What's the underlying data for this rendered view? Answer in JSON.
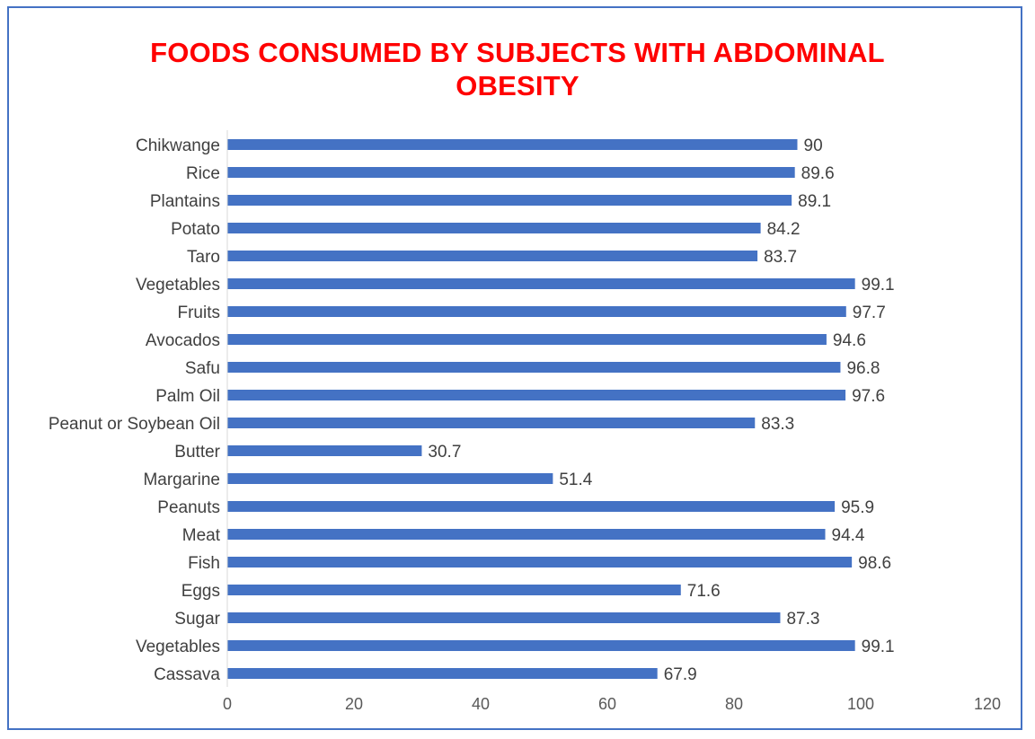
{
  "chart_data": {
    "type": "bar",
    "orientation": "horizontal",
    "title_line1": "FOODS CONSUMED BY SUBJECTS WITH ABDOMINAL",
    "title_line2": "OBESITY",
    "categories": [
      "Chikwange",
      "Rice",
      "Plantains",
      "Potato",
      "Taro",
      "Vegetables",
      "Fruits",
      "Avocados",
      "Safu",
      "Palm Oil",
      "Peanut or Soybean Oil",
      "Butter",
      "Margarine",
      "Peanuts",
      "Meat",
      "Fish",
      "Eggs",
      "Sugar",
      "Vegetables",
      "Cassava"
    ],
    "values": [
      90,
      89.6,
      89.1,
      84.2,
      83.7,
      99.1,
      97.7,
      94.6,
      96.8,
      97.6,
      83.3,
      30.7,
      51.4,
      95.9,
      94.4,
      98.6,
      71.6,
      87.3,
      99.1,
      67.9
    ],
    "xlim": [
      0,
      120
    ],
    "xticks": [
      0,
      20,
      40,
      60,
      80,
      100,
      120
    ],
    "xlabel": "",
    "ylabel": "",
    "grid": false,
    "legend": "none",
    "colors": {
      "bar": "#4472C4",
      "title": "#FF0000",
      "border": "#4472C4",
      "axis": "#D9D9D9",
      "text": "#404040"
    }
  }
}
